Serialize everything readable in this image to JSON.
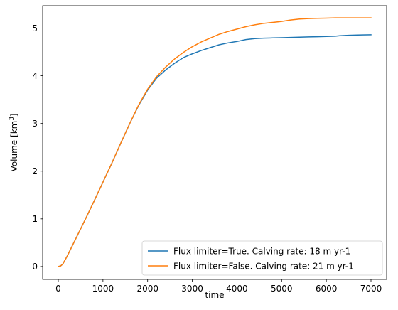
{
  "chart_data": {
    "type": "line",
    "title": "",
    "xlabel": "time",
    "ylabel": "Volume [km³]",
    "xlim": [
      -350,
      7350
    ],
    "ylim": [
      -0.27,
      5.47
    ],
    "xticks": [
      0,
      1000,
      2000,
      3000,
      4000,
      5000,
      6000,
      7000
    ],
    "xtick_labels": [
      "0",
      "1000",
      "2000",
      "3000",
      "4000",
      "5000",
      "6000",
      "7000"
    ],
    "yticks": [
      0,
      1,
      2,
      3,
      4,
      5
    ],
    "ytick_labels": [
      "0",
      "1",
      "2",
      "3",
      "4",
      "5"
    ],
    "grid": false,
    "legend_position": "lower right",
    "series": [
      {
        "name": "Flux limiter=True. Calving rate: 18 m yr-1",
        "color": "#1f77b4",
        "x": [
          0,
          50,
          100,
          200,
          400,
          600,
          800,
          1000,
          1200,
          1400,
          1600,
          1800,
          2000,
          2200,
          2400,
          2600,
          2800,
          3000,
          3200,
          3400,
          3600,
          3800,
          4000,
          4200,
          4400,
          4600,
          4800,
          5000,
          5200,
          5400,
          5600,
          5800,
          6000,
          6200,
          6300,
          6500,
          6700,
          7000
        ],
        "y": [
          0.0,
          0.01,
          0.05,
          0.22,
          0.6,
          0.98,
          1.37,
          1.77,
          2.17,
          2.59,
          3.0,
          3.38,
          3.7,
          3.95,
          4.12,
          4.26,
          4.38,
          4.46,
          4.53,
          4.59,
          4.65,
          4.69,
          4.72,
          4.76,
          4.78,
          4.79,
          4.795,
          4.8,
          4.805,
          4.81,
          4.815,
          4.82,
          4.825,
          4.83,
          4.84,
          4.85,
          4.855,
          4.86
        ]
      },
      {
        "name": "Flux limiter=False. Calving rate: 21 m yr-1",
        "color": "#ff7f0e",
        "x": [
          0,
          50,
          100,
          200,
          400,
          600,
          800,
          1000,
          1200,
          1400,
          1600,
          1800,
          2000,
          2200,
          2400,
          2600,
          2800,
          3000,
          3200,
          3400,
          3600,
          3800,
          4000,
          4200,
          4400,
          4600,
          4800,
          5000,
          5200,
          5400,
          5600,
          5800,
          6000,
          6200,
          6500,
          7000
        ],
        "y": [
          0.0,
          0.01,
          0.05,
          0.22,
          0.6,
          0.98,
          1.37,
          1.77,
          2.17,
          2.59,
          3.0,
          3.39,
          3.72,
          3.98,
          4.18,
          4.35,
          4.49,
          4.61,
          4.71,
          4.79,
          4.87,
          4.93,
          4.98,
          5.03,
          5.07,
          5.1,
          5.12,
          5.14,
          5.17,
          5.19,
          5.2,
          5.205,
          5.21,
          5.215,
          5.215,
          5.215
        ]
      }
    ]
  }
}
